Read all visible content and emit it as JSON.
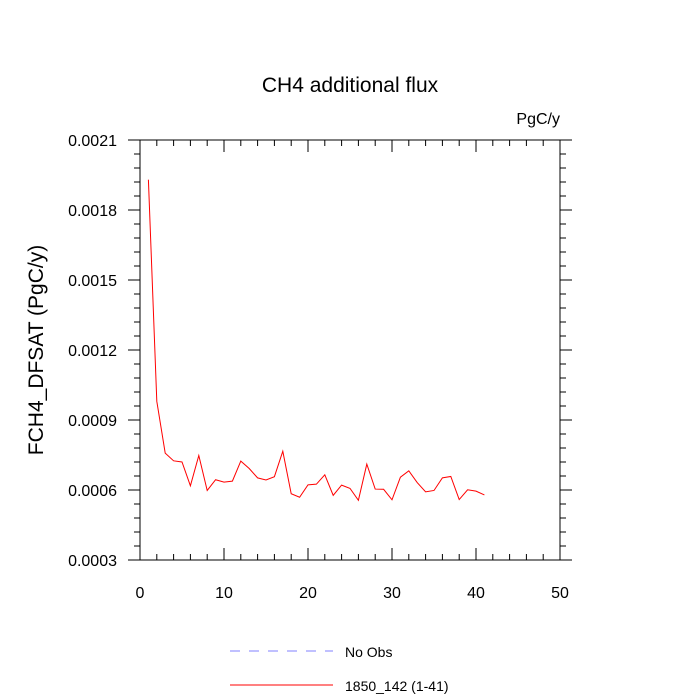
{
  "chart_data": {
    "type": "line",
    "title": "CH4 additional flux",
    "units_label": "PgC/y",
    "ylabel": "FCH4_DFSAT  (PgC/y)",
    "xlabel": "",
    "xlim": [
      0,
      50
    ],
    "ylim": [
      0.0003,
      0.0021
    ],
    "x_ticks": [
      0,
      10,
      20,
      30,
      40,
      50
    ],
    "x_tick_labels": [
      "0",
      "10",
      "20",
      "30",
      "40",
      "50"
    ],
    "y_ticks": [
      0.0003,
      0.0006,
      0.0009,
      0.0012,
      0.0015,
      0.0018,
      0.0021
    ],
    "y_tick_labels": [
      "0.0003",
      "0.0006",
      "0.0009",
      "0.0012",
      "0.0015",
      "0.0018",
      "0.0021"
    ],
    "grid": false,
    "legend_position": "bottom-center",
    "series": [
      {
        "name": "1850_142 (1-41)",
        "color": "#ff0000",
        "dash": "solid",
        "x": [
          1,
          2,
          3,
          4,
          5,
          6,
          7,
          8,
          9,
          10,
          11,
          12,
          13,
          14,
          15,
          16,
          17,
          18,
          19,
          20,
          21,
          22,
          23,
          24,
          25,
          26,
          27,
          28,
          29,
          30,
          31,
          32,
          33,
          34,
          35,
          36,
          37,
          38,
          39,
          40,
          41
        ],
        "y": [
          0.00193,
          0.00098,
          0.000758,
          0.000725,
          0.00072,
          0.000618,
          0.000748,
          0.000598,
          0.000644,
          0.000634,
          0.000638,
          0.000724,
          0.000692,
          0.000652,
          0.000643,
          0.000657,
          0.000766,
          0.000584,
          0.000569,
          0.000622,
          0.000625,
          0.000665,
          0.000577,
          0.000621,
          0.000607,
          0.000556,
          0.000711,
          0.000604,
          0.000603,
          0.000558,
          0.000655,
          0.000682,
          0.000632,
          0.000592,
          0.000598,
          0.000652,
          0.000658,
          0.000559,
          0.000601,
          0.000595,
          0.000579
        ]
      }
    ],
    "legend": [
      {
        "label": "No Obs",
        "color": "#8080ff",
        "dash": "dashed"
      },
      {
        "label": "1850_142 (1-41)",
        "color": "#ff0000",
        "dash": "solid"
      }
    ]
  }
}
